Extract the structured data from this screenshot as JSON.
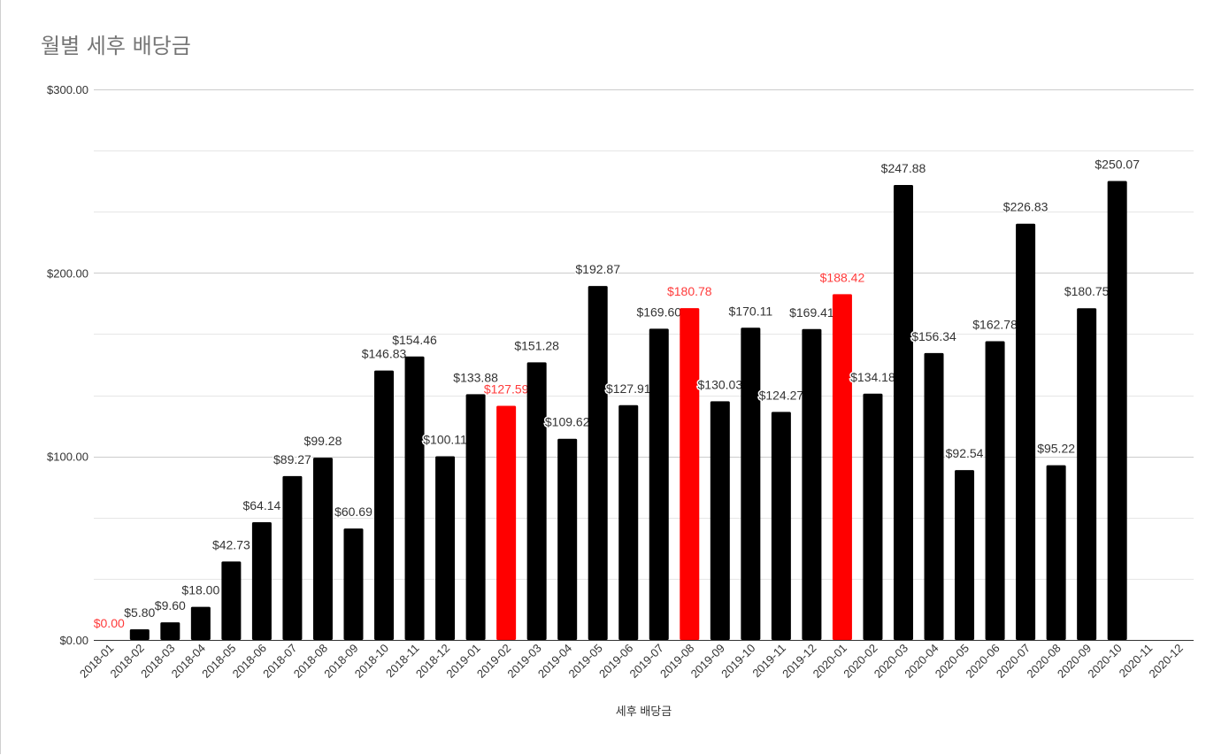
{
  "chart_data": {
    "type": "bar",
    "title": "월별 세후 배당금",
    "xlabel": "세후 배당금",
    "ylabel": "",
    "ylim": [
      0,
      300
    ],
    "y_ticks": [
      "$0.00",
      "$100.00",
      "$200.00",
      "$300.00"
    ],
    "grid": true,
    "legend": "none",
    "colors": {
      "default": "#000000",
      "highlight": "#ff0000",
      "label_default": "#333333",
      "label_highlight": "#ff3b3b"
    },
    "categories": [
      "2018-01",
      "2018-02",
      "2018-03",
      "2018-04",
      "2018-05",
      "2018-06",
      "2018-07",
      "2018-08",
      "2018-09",
      "2018-10",
      "2018-11",
      "2018-12",
      "2019-01",
      "2019-02",
      "2019-03",
      "2019-04",
      "2019-05",
      "2019-06",
      "2019-07",
      "2019-08",
      "2019-09",
      "2019-10",
      "2019-11",
      "2019-12",
      "2020-01",
      "2020-02",
      "2020-03",
      "2020-04",
      "2020-05",
      "2020-06",
      "2020-07",
      "2020-08",
      "2020-09",
      "2020-10",
      "2020-11",
      "2020-12"
    ],
    "values": [
      0.0,
      5.8,
      9.6,
      18.0,
      42.73,
      64.14,
      89.27,
      99.28,
      60.69,
      146.83,
      154.46,
      100.11,
      133.88,
      127.59,
      151.28,
      109.62,
      192.87,
      127.91,
      169.6,
      180.78,
      130.03,
      170.11,
      124.27,
      169.41,
      188.42,
      134.18,
      247.88,
      156.34,
      92.54,
      162.78,
      226.83,
      95.22,
      180.75,
      250.07,
      null,
      null
    ],
    "data_labels": [
      "$0.00",
      "$5.80",
      "$9.60",
      "$18.00",
      "$42.73",
      "$64.14",
      "$89.27",
      "$99.28",
      "$60.69",
      "$146.83",
      "$154.46",
      "$100.11",
      "$133.88",
      "$127.59",
      "$151.28",
      "$109.62",
      "$192.87",
      "$127.91",
      "$169.60",
      "$180.78",
      "$130.03",
      "$170.11",
      "$124.27",
      "$169.41",
      "$188.42",
      "$134.18",
      "$247.88",
      "$156.34",
      "$92.54",
      "$162.78",
      "$226.83",
      "$95.22",
      "$180.75",
      "$250.07",
      "",
      ""
    ],
    "highlighted_categories": [
      "2018-01",
      "2019-02",
      "2019-08",
      "2020-01"
    ]
  }
}
